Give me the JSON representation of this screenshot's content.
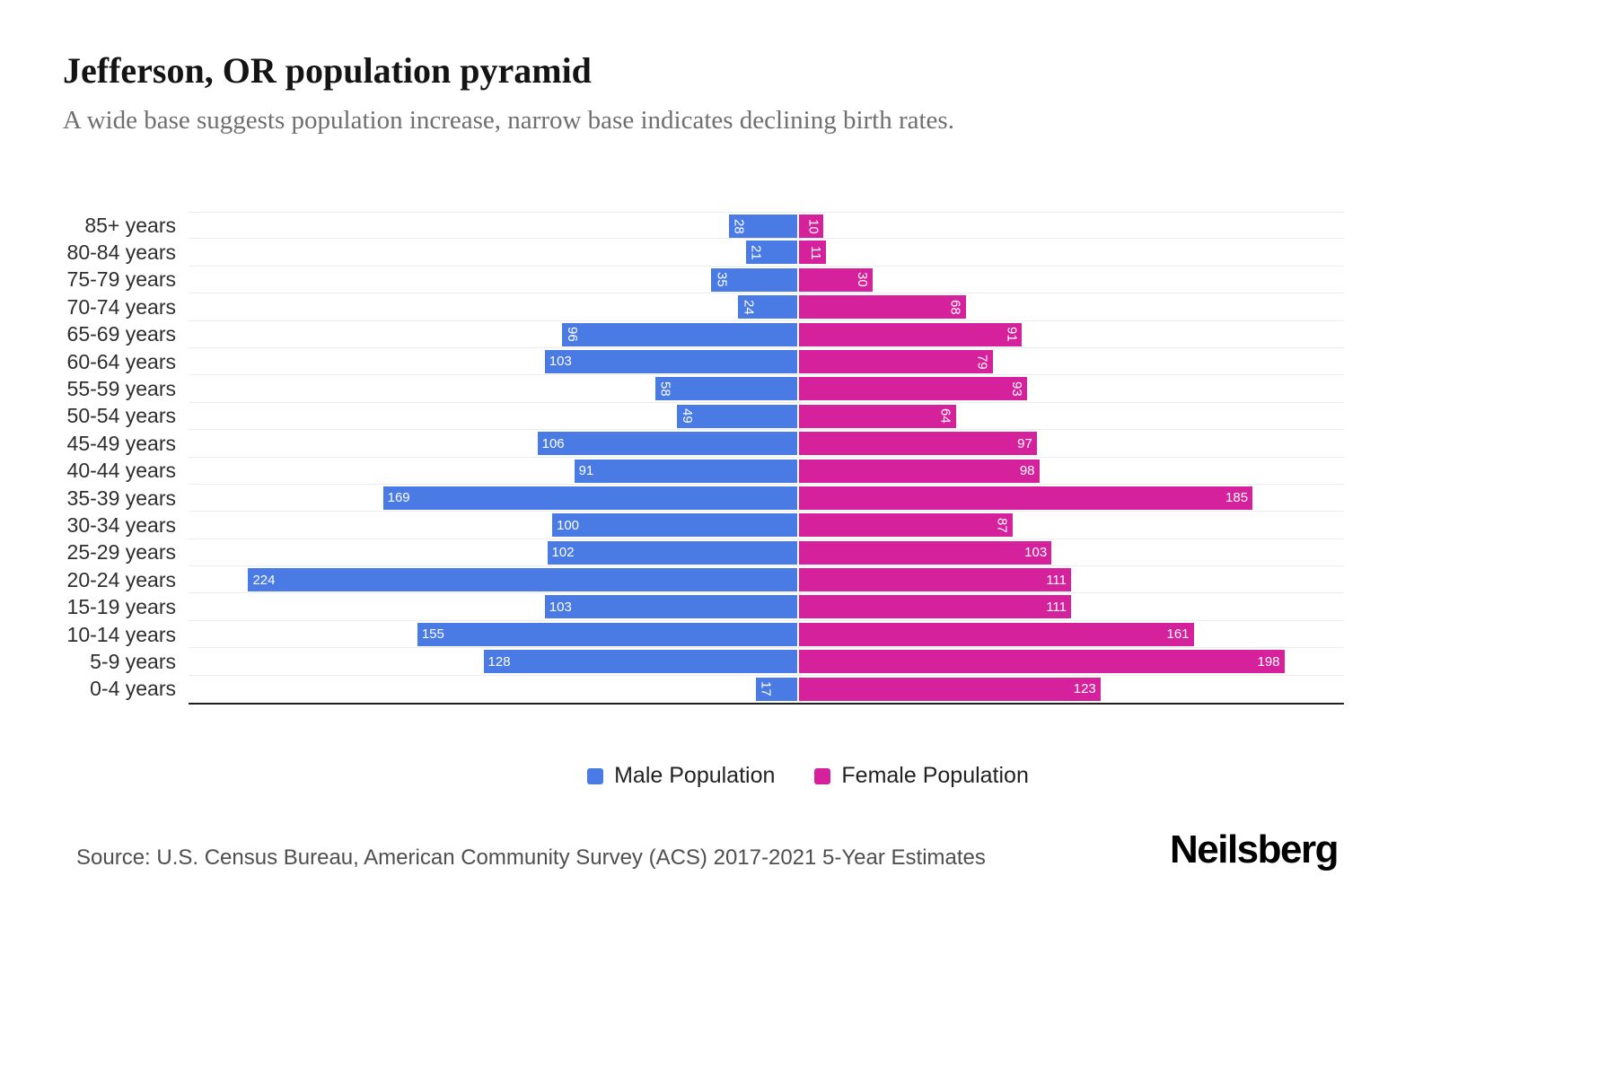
{
  "title": "Jefferson, OR population pyramid",
  "subtitle": "A wide base suggests population increase, narrow base indicates declining birth rates.",
  "source": "Source: U.S. Census Bureau, American Community Survey (ACS) 2017-2021 5-Year Estimates",
  "logo": "Neilsberg",
  "legend": {
    "male": "Male Population",
    "female": "Female Population"
  },
  "colors": {
    "male": "#4a7be4",
    "female": "#d6219c",
    "grid": "#ececec",
    "axis": "#1f1f1f",
    "subtitle_text": "#6f6f6f",
    "source_text": "#4f4f4f"
  },
  "chart_data": {
    "type": "bar",
    "variant": "population-pyramid",
    "orientation": "horizontal",
    "title": "Jefferson, OR population pyramid",
    "subtitle": "A wide base suggests population increase, narrow base indicates declining birth rates.",
    "categories": [
      "85+ years",
      "80-84 years",
      "75-79 years",
      "70-74 years",
      "65-69 years",
      "60-64 years",
      "55-59 years",
      "50-54 years",
      "45-49 years",
      "40-44 years",
      "35-39 years",
      "30-34 years",
      "25-29 years",
      "20-24 years",
      "15-19 years",
      "10-14 years",
      "5-9 years",
      "0-4 years"
    ],
    "series": [
      {
        "name": "Male Population",
        "color": "#4a7be4",
        "side": "left",
        "values": [
          28,
          21,
          35,
          24,
          96,
          103,
          58,
          49,
          106,
          91,
          169,
          100,
          102,
          224,
          103,
          155,
          128,
          17
        ],
        "rotated_labels": [
          true,
          true,
          true,
          true,
          true,
          false,
          true,
          true,
          false,
          false,
          false,
          false,
          false,
          false,
          false,
          false,
          false,
          true
        ]
      },
      {
        "name": "Female Population",
        "color": "#d6219c",
        "side": "right",
        "values": [
          10,
          11,
          30,
          68,
          91,
          79,
          93,
          64,
          97,
          98,
          185,
          87,
          103,
          111,
          111,
          161,
          198,
          123
        ],
        "rotated_labels": [
          true,
          true,
          true,
          true,
          true,
          true,
          true,
          true,
          false,
          false,
          false,
          true,
          false,
          false,
          false,
          false,
          false,
          false
        ]
      }
    ],
    "xlim": [
      0,
      230
    ],
    "grid": true,
    "legend_position": "bottom",
    "value_labels": "inside-outer-end"
  }
}
